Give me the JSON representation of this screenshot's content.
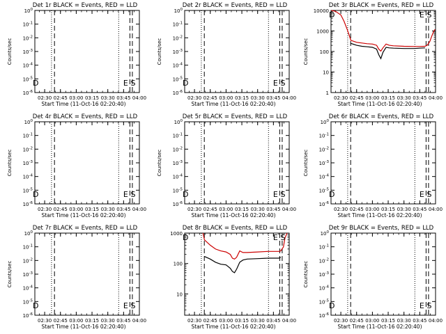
{
  "chart_data": [
    {
      "type": "line",
      "title": "Det 1r BLACK = Events, RED = LLD",
      "xlabel": "Start Time (11-Oct-16 02:20:40)",
      "ylabel": "Counts/sec",
      "x_ticks": [
        "02:30",
        "02:45",
        "03:00",
        "03:15",
        "03:30",
        "03:45",
        "04:00"
      ],
      "xlim": [
        "02:20:40",
        "04:00:00"
      ],
      "y_scale": "log",
      "y_ticks": [
        "10^0",
        "10^-1",
        "10^-2",
        "10^-3",
        "10^-4",
        "10^-5",
        "10^-6"
      ],
      "ylim": [
        0,
        -6
      ],
      "markers": [
        {
          "label": "D",
          "time": "02:21:30"
        },
        {
          "label": "E",
          "time": "03:47:00"
        },
        {
          "label": "S",
          "time": "03:54:00"
        }
      ],
      "vlines": [
        {
          "time": "02:36:30",
          "style": "dotted"
        },
        {
          "time": "02:39:20",
          "style": "dashed"
        },
        {
          "time": "03:40:20",
          "style": "dotted"
        },
        {
          "time": "03:51:00",
          "style": "dashed"
        },
        {
          "time": "03:53:20",
          "style": "dashed"
        }
      ],
      "series": []
    },
    {
      "type": "line",
      "title": "Det 2r BLACK = Events, RED = LLD",
      "xlabel": "Start Time (11-Oct-16 02:20:40)",
      "ylabel": "Counts/sec",
      "x_ticks": [
        "02:30",
        "02:45",
        "03:00",
        "03:15",
        "03:30",
        "03:45",
        "04:00"
      ],
      "xlim": [
        "02:20:40",
        "04:00:00"
      ],
      "y_scale": "log",
      "y_ticks": [
        "10^0",
        "10^-1",
        "10^-2",
        "10^-3",
        "10^-4",
        "10^-5",
        "10^-6"
      ],
      "ylim": [
        0,
        -6
      ],
      "markers": [
        {
          "label": "D",
          "time": "02:21:30"
        },
        {
          "label": "E",
          "time": "03:47:00"
        },
        {
          "label": "S",
          "time": "03:54:00"
        }
      ],
      "vlines": [
        {
          "time": "02:36:30",
          "style": "dotted"
        },
        {
          "time": "02:39:20",
          "style": "dashed"
        },
        {
          "time": "03:40:20",
          "style": "dotted"
        },
        {
          "time": "03:51:00",
          "style": "dashed"
        },
        {
          "time": "03:53:20",
          "style": "dashed"
        }
      ],
      "series": []
    },
    {
      "type": "line",
      "title": "Det 3r BLACK = Events, RED = LLD",
      "xlabel": "Start Time (11-Oct-16 02:20:40)",
      "ylabel": "Counts/sec",
      "x_ticks": [
        "02:30",
        "02:45",
        "03:00",
        "03:15",
        "03:30",
        "03:45",
        "04:00"
      ],
      "xlim": [
        "02:20:40",
        "04:00:00"
      ],
      "y_scale": "log",
      "y_ticks": [
        "10000",
        "1000",
        "100",
        "10",
        "1"
      ],
      "ylim": [
        1,
        10000
      ],
      "markers": [
        {
          "label": "D",
          "time": "02:21:30"
        },
        {
          "label": "E",
          "time": "03:47:00"
        },
        {
          "label": "S",
          "time": "03:54:00"
        }
      ],
      "vlines": [
        {
          "time": "02:36:30",
          "style": "dotted"
        },
        {
          "time": "02:39:20",
          "style": "dashed"
        },
        {
          "time": "03:40:20",
          "style": "dotted"
        },
        {
          "time": "03:51:00",
          "style": "dashed"
        },
        {
          "time": "03:53:20",
          "style": "dashed"
        }
      ],
      "series": [
        {
          "color": "#cc0000",
          "x": [
            "02:21:00",
            "02:25:00",
            "02:30:00",
            "02:33:00",
            "02:36:00",
            "02:38:00",
            "02:39:30",
            "02:45:00",
            "02:50:00",
            "02:55:00",
            "03:00:00",
            "03:04:00",
            "03:06:00",
            "03:08:00",
            "03:10:00",
            "03:13:00",
            "03:16:00",
            "03:20:00",
            "03:30:00",
            "03:40:00",
            "03:45:00",
            "03:50:00",
            "03:52:00",
            "03:54:30",
            "03:56:00",
            "03:58:00",
            "03:59:30"
          ],
          "values": [
            11000,
            9000,
            6000,
            3000,
            1200,
            600,
            350,
            280,
            260,
            240,
            230,
            200,
            130,
            105,
            150,
            230,
            200,
            190,
            180,
            175,
            175,
            180,
            200,
            300,
            500,
            900,
            1200
          ]
        },
        {
          "color": "#000000",
          "x": [
            "02:39:30",
            "02:45:00",
            "02:50:00",
            "02:55:00",
            "03:00:00",
            "03:04:00",
            "03:06:00",
            "03:08:00",
            "03:10:00",
            "03:13:00",
            "03:16:00",
            "03:20:00",
            "03:30:00",
            "03:40:00",
            "03:45:00",
            "03:50:00"
          ],
          "values": [
            250,
            200,
            180,
            170,
            160,
            130,
            70,
            45,
            90,
            160,
            150,
            145,
            140,
            140,
            145,
            150
          ]
        }
      ]
    },
    {
      "type": "line",
      "title": "Det 4r BLACK = Events, RED = LLD",
      "xlabel": "Start Time (11-Oct-16 02:20:40)",
      "ylabel": "Counts/sec",
      "x_ticks": [
        "02:30",
        "02:45",
        "03:00",
        "03:15",
        "03:30",
        "03:45",
        "04:00"
      ],
      "xlim": [
        "02:20:40",
        "04:00:00"
      ],
      "y_scale": "log",
      "y_ticks": [
        "10^0",
        "10^-1",
        "10^-2",
        "10^-3",
        "10^-4",
        "10^-5",
        "10^-6"
      ],
      "ylim": [
        0,
        -6
      ],
      "markers": [
        {
          "label": "D",
          "time": "02:21:30"
        },
        {
          "label": "E",
          "time": "03:47:00"
        },
        {
          "label": "S",
          "time": "03:54:00"
        }
      ],
      "vlines": [
        {
          "time": "02:36:30",
          "style": "dotted"
        },
        {
          "time": "02:39:20",
          "style": "dashed"
        },
        {
          "time": "03:40:20",
          "style": "dotted"
        },
        {
          "time": "03:51:00",
          "style": "dashed"
        },
        {
          "time": "03:53:20",
          "style": "dashed"
        }
      ],
      "series": []
    },
    {
      "type": "line",
      "title": "Det 5r BLACK = Events, RED = LLD",
      "xlabel": "Start Time (11-Oct-16 02:20:40)",
      "ylabel": "Counts/sec",
      "x_ticks": [
        "02:30",
        "02:45",
        "03:00",
        "03:15",
        "03:30",
        "03:45",
        "04:00"
      ],
      "xlim": [
        "02:20:40",
        "04:00:00"
      ],
      "y_scale": "log",
      "y_ticks": [
        "10^0",
        "10^-1",
        "10^-2",
        "10^-3",
        "10^-4",
        "10^-5",
        "10^-6"
      ],
      "ylim": [
        0,
        -6
      ],
      "markers": [
        {
          "label": "D",
          "time": "02:21:30"
        },
        {
          "label": "E",
          "time": "03:47:00"
        },
        {
          "label": "S",
          "time": "03:54:00"
        }
      ],
      "vlines": [
        {
          "time": "02:36:30",
          "style": "dotted"
        },
        {
          "time": "02:39:20",
          "style": "dashed"
        },
        {
          "time": "03:40:20",
          "style": "dotted"
        },
        {
          "time": "03:51:00",
          "style": "dashed"
        },
        {
          "time": "03:53:20",
          "style": "dashed"
        }
      ],
      "series": []
    },
    {
      "type": "line",
      "title": "Det 6r BLACK = Events, RED = LLD",
      "xlabel": "Start Time (11-Oct-16 02:20:40)",
      "ylabel": "Counts/sec",
      "x_ticks": [
        "02:30",
        "02:45",
        "03:00",
        "03:15",
        "03:30",
        "03:45",
        "04:00"
      ],
      "xlim": [
        "02:20:40",
        "04:00:00"
      ],
      "y_scale": "log",
      "y_ticks": [
        "10^0",
        "10^-1",
        "10^-2",
        "10^-3",
        "10^-4",
        "10^-5",
        "10^-6"
      ],
      "ylim": [
        0,
        -6
      ],
      "markers": [
        {
          "label": "D",
          "time": "02:21:30"
        },
        {
          "label": "E",
          "time": "03:47:00"
        },
        {
          "label": "S",
          "time": "03:54:00"
        }
      ],
      "vlines": [
        {
          "time": "02:36:30",
          "style": "dotted"
        },
        {
          "time": "02:39:20",
          "style": "dashed"
        },
        {
          "time": "03:40:20",
          "style": "dotted"
        },
        {
          "time": "03:51:00",
          "style": "dashed"
        },
        {
          "time": "03:53:20",
          "style": "dashed"
        }
      ],
      "series": []
    },
    {
      "type": "line",
      "title": "Det 7r BLACK = Events, RED = LLD",
      "xlabel": "Start Time (11-Oct-16 02:20:40)",
      "ylabel": "Counts/sec",
      "x_ticks": [
        "02:30",
        "02:45",
        "03:00",
        "03:15",
        "03:30",
        "03:45",
        "04:00"
      ],
      "xlim": [
        "02:20:40",
        "04:00:00"
      ],
      "y_scale": "log",
      "y_ticks": [
        "10^0",
        "10^-1",
        "10^-2",
        "10^-3",
        "10^-4",
        "10^-5",
        "10^-6"
      ],
      "ylim": [
        0,
        -6
      ],
      "markers": [
        {
          "label": "D",
          "time": "02:21:30"
        },
        {
          "label": "E",
          "time": "03:47:00"
        },
        {
          "label": "S",
          "time": "03:54:00"
        }
      ],
      "vlines": [
        {
          "time": "02:36:30",
          "style": "dotted"
        },
        {
          "time": "02:39:20",
          "style": "dashed"
        },
        {
          "time": "03:40:20",
          "style": "dotted"
        },
        {
          "time": "03:51:00",
          "style": "dashed"
        },
        {
          "time": "03:53:20",
          "style": "dashed"
        }
      ],
      "series": []
    },
    {
      "type": "line",
      "title": "Det 8r BLACK = Events, RED = LLD",
      "xlabel": "Start Time (11-Oct-16 02:20:40)",
      "ylabel": "",
      "x_ticks": [
        "02:30",
        "02:45",
        "03:00",
        "03:15",
        "03:30",
        "03:45",
        "04:00"
      ],
      "xlim": [
        "02:20:40",
        "04:00:00"
      ],
      "y_scale": "log",
      "y_ticks": [
        "1000",
        "100",
        "10"
      ],
      "ylim": [
        2,
        1000
      ],
      "markers": [
        {
          "label": "D",
          "time": "02:21:30"
        },
        {
          "label": "E",
          "time": "03:47:00"
        },
        {
          "label": "S",
          "time": "03:54:00"
        }
      ],
      "vlines": [
        {
          "time": "02:36:30",
          "style": "dotted"
        },
        {
          "time": "02:39:20",
          "style": "dashed"
        },
        {
          "time": "03:40:20",
          "style": "dotted"
        },
        {
          "time": "03:51:00",
          "style": "dashed"
        },
        {
          "time": "03:53:20",
          "style": "dashed"
        }
      ],
      "series": [
        {
          "color": "#cc0000",
          "x": [
            "02:38:00",
            "02:39:30",
            "02:45:00",
            "02:50:00",
            "02:55:00",
            "03:00:00",
            "03:04:00",
            "03:06:00",
            "03:08:00",
            "03:10:00",
            "03:13:00",
            "03:16:00",
            "03:20:00",
            "03:30:00",
            "03:40:00",
            "03:45:00",
            "03:50:00",
            "03:52:00",
            "03:54:30",
            "03:56:00",
            "03:58:00"
          ],
          "values": [
            1000,
            600,
            400,
            300,
            260,
            240,
            200,
            150,
            140,
            160,
            260,
            230,
            230,
            240,
            250,
            250,
            250,
            260,
            350,
            700,
            1000
          ]
        },
        {
          "color": "#000000",
          "x": [
            "02:39:30",
            "02:45:00",
            "02:50:00",
            "02:55:00",
            "03:00:00",
            "03:04:00",
            "03:06:00",
            "03:08:00",
            "03:10:00",
            "03:13:00",
            "03:16:00",
            "03:20:00",
            "03:30:00",
            "03:40:00",
            "03:45:00",
            "03:50:00",
            "03:52:00"
          ],
          "values": [
            170,
            140,
            110,
            95,
            90,
            70,
            55,
            50,
            65,
            110,
            130,
            140,
            145,
            150,
            150,
            150,
            160
          ]
        }
      ]
    },
    {
      "type": "line",
      "title": "Det 9r BLACK = Events, RED = LLD",
      "xlabel": "Start Time (11-Oct-16 02:20:40)",
      "ylabel": "Counts/sec",
      "x_ticks": [
        "02:30",
        "02:45",
        "03:00",
        "03:15",
        "03:30",
        "03:45",
        "04:00"
      ],
      "xlim": [
        "02:20:40",
        "04:00:00"
      ],
      "y_scale": "log",
      "y_ticks": [
        "10^0",
        "10^-1",
        "10^-2",
        "10^-3",
        "10^-4",
        "10^-5",
        "10^-6"
      ],
      "ylim": [
        0,
        -6
      ],
      "markers": [
        {
          "label": "D",
          "time": "02:21:30"
        },
        {
          "label": "E",
          "time": "03:47:00"
        },
        {
          "label": "S",
          "time": "03:54:00"
        }
      ],
      "vlines": [
        {
          "time": "02:36:30",
          "style": "dotted"
        },
        {
          "time": "02:39:20",
          "style": "dashed"
        },
        {
          "time": "03:40:20",
          "style": "dotted"
        },
        {
          "time": "03:51:00",
          "style": "dashed"
        },
        {
          "time": "03:53:20",
          "style": "dashed"
        }
      ],
      "series": []
    }
  ]
}
